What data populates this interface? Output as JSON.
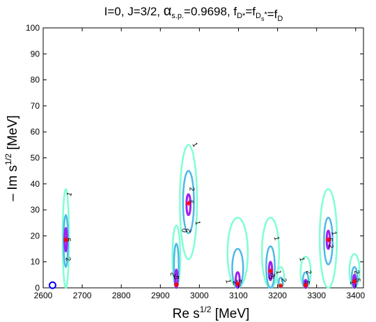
{
  "chart_data": {
    "type": "contour",
    "title_parts": {
      "prefix": "I=0, J=3/2,  ",
      "alpha": "α",
      "alpha_sub": "s.p.",
      "alpha_value": "=0.9698, f",
      "f1_sub": "D*",
      "f2_eq": "=f",
      "f2_sub": "D",
      "f2_subsub": "s",
      "f2_star": "*",
      "f3_eq": "=f",
      "f3_sub": "D"
    },
    "xlabel": {
      "main": "Re s",
      "sup": "1/2",
      "unit": " [MeV]"
    },
    "ylabel": {
      "main": "– Im s",
      "sup": "1/2",
      "unit": " [MeV]"
    },
    "xlim": [
      2600,
      3420
    ],
    "ylim": [
      0,
      100
    ],
    "xticks": [
      "2600",
      "2700",
      "2800",
      "2900",
      "3000",
      "3100",
      "3200",
      "3300",
      "3400"
    ],
    "yticks": [
      "0",
      "10",
      "20",
      "30",
      "40",
      "50",
      "60",
      "70",
      "80",
      "90",
      "100"
    ],
    "level_colors": {
      "1": "#7fffd4",
      "2": "#4fb8e8",
      "5": "#a020f0"
    },
    "marker_colors": {
      "pole": "#ff0000",
      "open_circle": "#0000ff"
    },
    "poles": [
      {
        "x": 2658,
        "y": 18.5
      },
      {
        "x": 2941,
        "y": 1.2
      },
      {
        "x": 2972,
        "y": 32.5
      },
      {
        "x": 3098,
        "y": 1.5
      },
      {
        "x": 3182,
        "y": 6.5
      },
      {
        "x": 3208,
        "y": 0.8
      },
      {
        "x": 3272,
        "y": 1.0
      },
      {
        "x": 3330,
        "y": 18.5
      },
      {
        "x": 3397,
        "y": 2.5
      }
    ],
    "contours": [
      {
        "cx": 2658,
        "cy": 18.5,
        "levels": [
          {
            "level": "1",
            "rx": 8,
            "top": 38,
            "bottom": 0
          },
          {
            "level": "2",
            "rx": 5.5,
            "top": 28,
            "bottom": 8
          },
          {
            "level": "5",
            "rx": 3,
            "top": 23,
            "bottom": 14
          }
        ]
      },
      {
        "cx": 2941,
        "cy": 1.2,
        "levels": [
          {
            "level": "1",
            "rx": 10,
            "top": 24,
            "bottom": 0
          },
          {
            "level": "2",
            "rx": 6,
            "top": 17,
            "bottom": 0
          },
          {
            "level": "5",
            "rx": 3,
            "top": 7,
            "bottom": 0
          }
        ]
      },
      {
        "cx": 2972,
        "cy": 32.5,
        "levels": [
          {
            "level": "1",
            "rx": 22,
            "top": 55,
            "bottom": 11
          },
          {
            "level": "2",
            "rx": 14,
            "top": 45,
            "bottom": 21
          },
          {
            "level": "5",
            "rx": 5,
            "top": 36,
            "bottom": 28
          }
        ]
      },
      {
        "cx": 3098,
        "cy": 1.5,
        "levels": [
          {
            "level": "1",
            "rx": 26,
            "top": 27,
            "bottom": 0
          },
          {
            "level": "2",
            "rx": 14,
            "top": 15,
            "bottom": 0
          },
          {
            "level": "5",
            "rx": 5,
            "top": 6,
            "bottom": 0
          }
        ]
      },
      {
        "cx": 3182,
        "cy": 6.5,
        "levels": [
          {
            "level": "1",
            "rx": 22,
            "top": 27,
            "bottom": 0
          },
          {
            "level": "2",
            "rx": 11,
            "top": 16,
            "bottom": 0
          },
          {
            "level": "5",
            "rx": 4,
            "top": 10,
            "bottom": 3
          }
        ]
      },
      {
        "cx": 3208,
        "cy": 0.8,
        "levels": [
          {
            "level": "1",
            "rx": 9,
            "top": 8,
            "bottom": 0
          },
          {
            "level": "2",
            "rx": 5,
            "top": 4,
            "bottom": 0
          }
        ]
      },
      {
        "cx": 3272,
        "cy": 1.0,
        "levels": [
          {
            "level": "1",
            "rx": 13,
            "top": 12,
            "bottom": 0
          },
          {
            "level": "2",
            "rx": 7,
            "top": 6,
            "bottom": 0
          },
          {
            "level": "5",
            "rx": 3,
            "top": 3,
            "bottom": 0
          }
        ]
      },
      {
        "cx": 3330,
        "cy": 18.5,
        "levels": [
          {
            "level": "1",
            "rx": 22,
            "top": 38,
            "bottom": 0
          },
          {
            "level": "2",
            "rx": 11,
            "top": 27,
            "bottom": 9
          },
          {
            "level": "5",
            "rx": 4,
            "top": 22,
            "bottom": 15
          }
        ]
      },
      {
        "cx": 3397,
        "cy": 2.5,
        "levels": [
          {
            "level": "1",
            "rx": 13,
            "top": 13,
            "bottom": 0
          },
          {
            "level": "2",
            "rx": 7,
            "top": 8,
            "bottom": 0
          },
          {
            "level": "5",
            "rx": 3,
            "top": 5,
            "bottom": 0
          }
        ]
      }
    ],
    "contour_labels": [
      {
        "text": "1",
        "x": 2668,
        "y": 36,
        "rot": -70
      },
      {
        "text": "2",
        "x": 2663,
        "y": 11,
        "rot": 80
      },
      {
        "text": "5",
        "x": 2663,
        "y": 18.5,
        "rot": 90
      },
      {
        "text": "2",
        "x": 2933,
        "y": 5,
        "rot": -70
      },
      {
        "text": "5",
        "x": 2940,
        "y": 4,
        "rot": 90
      },
      {
        "text": "1",
        "x": 2988,
        "y": 55,
        "rot": 60
      },
      {
        "text": "2",
        "x": 2980,
        "y": 38,
        "rot": 90
      },
      {
        "text": "5",
        "x": 2976,
        "y": 33,
        "rot": 90
      },
      {
        "text": "2",
        "x": 2974,
        "y": 22,
        "rot": -80
      },
      {
        "text": "0",
        "x": 2963,
        "y": 22,
        "rot": -80
      },
      {
        "text": "1",
        "x": 2995,
        "y": 25,
        "rot": 80
      },
      {
        "text": "1",
        "x": 3073,
        "y": 2.5,
        "rot": 80
      },
      {
        "text": "2",
        "x": 3091,
        "y": 2,
        "rot": 80
      },
      {
        "text": "5",
        "x": 3100,
        "y": 2.5,
        "rot": 90
      },
      {
        "text": "1",
        "x": 3197,
        "y": 19,
        "rot": 80
      },
      {
        "text": "5",
        "x": 3182,
        "y": 4,
        "rot": 90
      },
      {
        "text": "2",
        "x": 3189,
        "y": 5,
        "rot": -80
      },
      {
        "text": "1",
        "x": 3202,
        "y": 6,
        "rot": 80
      },
      {
        "text": "2",
        "x": 3215,
        "y": 3,
        "rot": 90
      },
      {
        "text": "1",
        "x": 3262,
        "y": 11,
        "rot": 80
      },
      {
        "text": "2",
        "x": 3279,
        "y": 6,
        "rot": 80
      },
      {
        "text": "5",
        "x": 3275,
        "y": 2,
        "rot": 90
      },
      {
        "text": "1",
        "x": 3344,
        "y": 21,
        "rot": 80
      },
      {
        "text": "2",
        "x": 3336,
        "y": 16,
        "rot": 90
      },
      {
        "text": "5",
        "x": 3333,
        "y": 18.5,
        "rot": 90
      },
      {
        "text": "2",
        "x": 3402,
        "y": 6,
        "rot": 80
      },
      {
        "text": "5",
        "x": 3404,
        "y": 3,
        "rot": 90
      },
      {
        "text": "1",
        "x": 3391,
        "y": 2,
        "rot": 80
      }
    ],
    "open_circle": {
      "x": 2624,
      "y": 1
    }
  }
}
